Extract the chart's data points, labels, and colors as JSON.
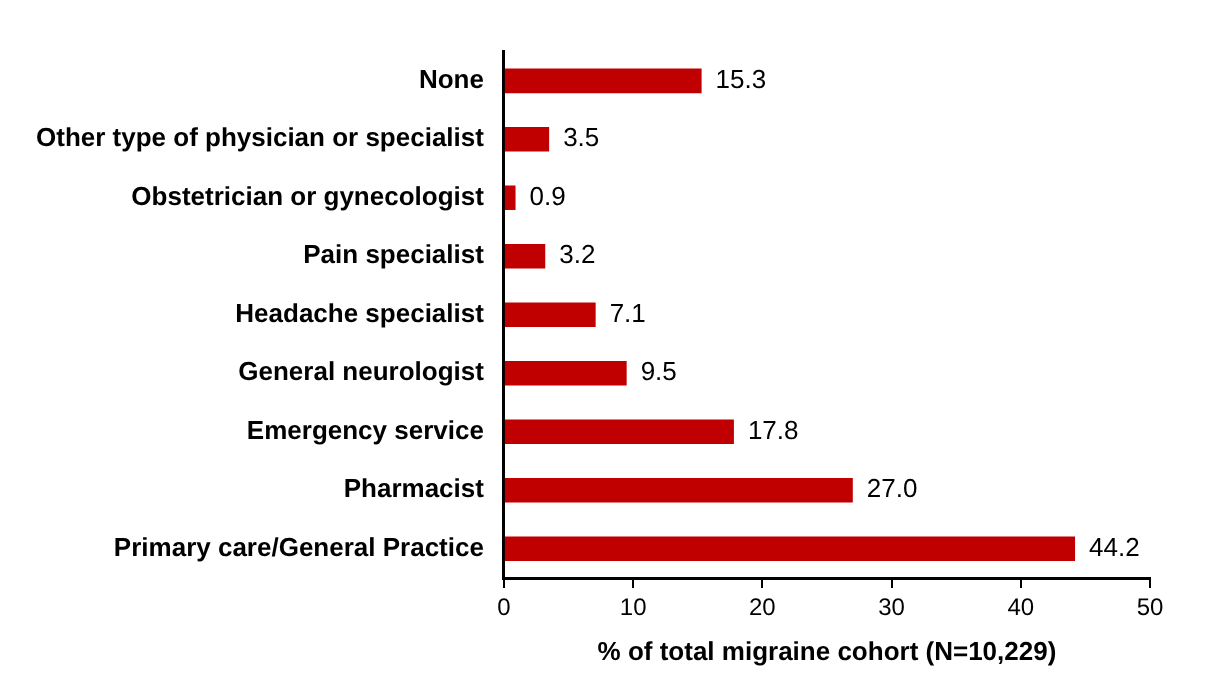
{
  "chart_data": {
    "type": "bar",
    "orientation": "horizontal",
    "xlabel": "% of total migraine cohort (N=10,229)",
    "categories": [
      "None",
      "Other type of physician or specialist",
      "Obstetrician or gynecologist",
      "Pain specialist",
      "Headache specialist",
      "General neurologist",
      "Emergency service",
      "Pharmacist",
      "Primary care/General Practice"
    ],
    "values": [
      15.3,
      3.5,
      0.9,
      3.2,
      7.1,
      9.5,
      17.8,
      27.0,
      44.2
    ],
    "value_labels": [
      "15.3",
      "3.5",
      "0.9",
      "3.2",
      "7.1",
      "9.5",
      "17.8",
      "27.0",
      "44.2"
    ],
    "color": "#c00000",
    "xlim": [
      0,
      50
    ],
    "xticks": [
      0,
      10,
      20,
      30,
      40,
      50
    ],
    "grid": false,
    "legend": false
  }
}
